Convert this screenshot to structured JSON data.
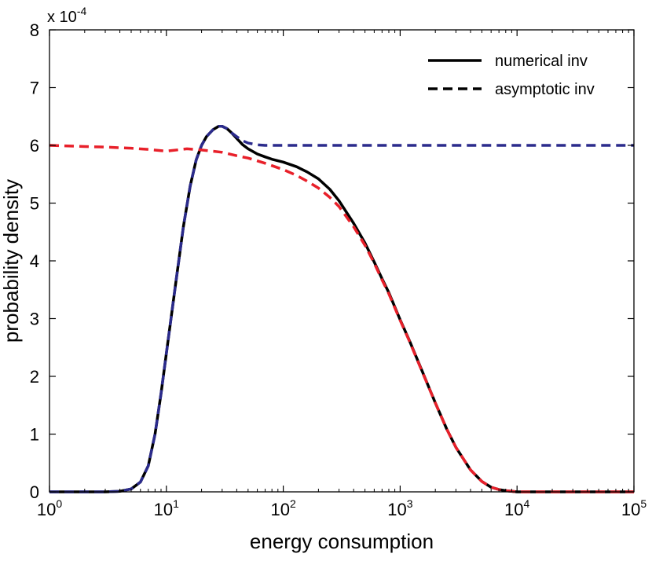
{
  "chart_data": {
    "type": "line",
    "x_scale": "log",
    "xlim": [
      1,
      100000
    ],
    "ylim": [
      0,
      0.0008
    ],
    "y_multiplier_label": {
      "base": "x 10",
      "exponent": "-4"
    },
    "xlabel": "energy consumption",
    "ylabel": "probability density",
    "x_ticks": [
      {
        "base": "10",
        "exp": "0",
        "value": 1
      },
      {
        "base": "10",
        "exp": "1",
        "value": 10
      },
      {
        "base": "10",
        "exp": "2",
        "value": 100
      },
      {
        "base": "10",
        "exp": "3",
        "value": 1000
      },
      {
        "base": "10",
        "exp": "4",
        "value": 10000
      },
      {
        "base": "10",
        "exp": "5",
        "value": 100000
      }
    ],
    "y_ticks": [
      {
        "label": "0",
        "value": 0
      },
      {
        "label": "1",
        "value": 0.0001
      },
      {
        "label": "2",
        "value": 0.0002
      },
      {
        "label": "3",
        "value": 0.0003
      },
      {
        "label": "4",
        "value": 0.0004
      },
      {
        "label": "5",
        "value": 0.0005
      },
      {
        "label": "6",
        "value": 0.0006
      },
      {
        "label": "7",
        "value": 0.0007
      },
      {
        "label": "8",
        "value": 0.0008
      }
    ],
    "legend": {
      "placement": "top-right",
      "entries": [
        {
          "label": "numerical inv",
          "style": "solid",
          "color": "#000000"
        },
        {
          "label": "asymptotic inv",
          "style": "dashed",
          "color": "#000000"
        }
      ]
    },
    "series": [
      {
        "style": "solid",
        "color": "#000000",
        "x": [
          1,
          2,
          3,
          4,
          5,
          6,
          7,
          8,
          9,
          10,
          12,
          14,
          16,
          18,
          20,
          22,
          25,
          28,
          30,
          33,
          36,
          40,
          45,
          50,
          60,
          70,
          80,
          100,
          130,
          160,
          200,
          250,
          300,
          400,
          500,
          600,
          700,
          800,
          1000,
          1200,
          1500,
          2000,
          2500,
          3000,
          4000,
          5000,
          6000,
          7000,
          8000,
          10000,
          15000,
          20000,
          50000,
          100000
        ],
        "y": [
          0,
          0,
          0,
          1e-06,
          5e-06,
          1.7e-05,
          4.5e-05,
          0.0001,
          0.00017,
          0.00024,
          0.00036,
          0.00046,
          0.00053,
          0.000575,
          0.0006,
          0.000615,
          0.000627,
          0.000633,
          0.000633,
          0.000629,
          0.000622,
          0.000612,
          0.000601,
          0.000594,
          0.000585,
          0.00058,
          0.000576,
          0.000571,
          0.000563,
          0.000554,
          0.000542,
          0.000524,
          0.000504,
          0.000465,
          0.000431,
          0.000398,
          0.000369,
          0.000345,
          0.000298,
          0.000262,
          0.000215,
          0.000154,
          0.000109,
          7.7e-05,
          3.8e-05,
          1.8e-05,
          8e-06,
          4e-06,
          2e-06,
          0,
          0,
          0,
          0,
          0
        ]
      },
      {
        "style": "dashed",
        "color": "#2b2b8c",
        "x": [
          1,
          2,
          3,
          4,
          5,
          6,
          7,
          8,
          9,
          10,
          12,
          14,
          16,
          18,
          20,
          22,
          25,
          28,
          30,
          33,
          36,
          40,
          45,
          50,
          60,
          70,
          80,
          100,
          200,
          500,
          1000,
          10000,
          100000
        ],
        "y": [
          0,
          0,
          0,
          1e-06,
          5e-06,
          1.7e-05,
          4.5e-05,
          0.0001,
          0.00017,
          0.00024,
          0.00036,
          0.00046,
          0.00053,
          0.000575,
          0.0006,
          0.000615,
          0.000627,
          0.000633,
          0.000633,
          0.000629,
          0.000622,
          0.000615,
          0.000608,
          0.000604,
          0.000601,
          0.0006,
          0.0006,
          0.0006,
          0.0006,
          0.0006,
          0.0006,
          0.0006,
          0.0006
        ]
      },
      {
        "style": "dashed",
        "color": "#e8202a",
        "x": [
          1,
          2,
          3,
          5,
          7,
          10,
          15,
          20,
          30,
          40,
          50,
          70,
          100,
          130,
          160,
          200,
          250,
          300,
          400,
          500,
          600,
          700,
          800,
          1000,
          1200,
          1500,
          2000,
          2500,
          3000,
          4000,
          5000,
          6000,
          7000,
          8000,
          10000,
          15000,
          20000,
          50000,
          100000
        ],
        "y": [
          0.0006,
          0.000598,
          0.000597,
          0.000595,
          0.000593,
          0.00059,
          0.000594,
          0.000592,
          0.000588,
          0.000582,
          0.000578,
          0.000569,
          0.000558,
          0.000548,
          0.000538,
          0.000526,
          0.00051,
          0.000494,
          0.000459,
          0.000427,
          0.000396,
          0.000367,
          0.000343,
          0.000297,
          0.000261,
          0.000214,
          0.000154,
          0.000109,
          7.7e-05,
          3.8e-05,
          1.8e-05,
          8e-06,
          4e-06,
          2e-06,
          0,
          0,
          0,
          0,
          0
        ]
      }
    ]
  }
}
